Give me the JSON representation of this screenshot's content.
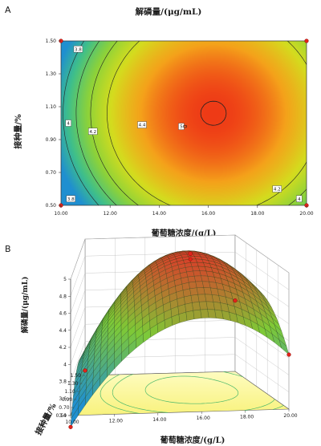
{
  "chart_data": [
    {
      "panel": "A",
      "type": "heatmap",
      "subtype": "contour",
      "title": "解磷量/(μg/mL)",
      "xlabel": "葡萄糖浓度/(g/L)",
      "ylabel": "接种量/%",
      "xlim": [
        10,
        20
      ],
      "ylim": [
        0.5,
        1.5
      ],
      "xticks": [
        "10.00",
        "12.00",
        "14.00",
        "16.00",
        "18.00",
        "20.00"
      ],
      "yticks": [
        "0.50",
        "0.70",
        "0.90",
        "1.10",
        "1.30",
        "1.50"
      ],
      "contour_levels": [
        3.8,
        4,
        4.2,
        4.4,
        5
      ],
      "contour_labels": [
        {
          "text": "3.8",
          "x": 10.7,
          "y": 1.45
        },
        {
          "text": "4",
          "x": 10.3,
          "y": 1.0
        },
        {
          "text": "4.2",
          "x": 11.3,
          "y": 0.95
        },
        {
          "text": "4.4",
          "x": 13.3,
          "y": 0.99
        },
        {
          "text": "5",
          "x": 14.9,
          "y": 0.98
        },
        {
          "text": "3.8",
          "x": 10.4,
          "y": 0.54
        },
        {
          "text": "4.2",
          "x": 18.8,
          "y": 0.6
        },
        {
          "text": "4",
          "x": 19.7,
          "y": 0.54
        }
      ],
      "design_points": [
        {
          "x": 10,
          "y": 1.5
        },
        {
          "x": 20,
          "y": 1.5
        },
        {
          "x": 10,
          "y": 0.5
        },
        {
          "x": 20,
          "y": 0.5
        }
      ],
      "color_scale": [
        "#1f8fd0",
        "#3fbf8a",
        "#8cd23a",
        "#d4dc1e",
        "#f4a21a",
        "#ee3a16"
      ]
    },
    {
      "panel": "B",
      "type": "area",
      "subtype": "surface3d",
      "xlabel": "葡萄糖浓度/(g/L)",
      "ylabel": "接种量/%",
      "zlabel": "解磷量/(μg/mL)",
      "xlim": [
        10,
        20
      ],
      "ylim": [
        0.5,
        1.5
      ],
      "zlim": [
        3.4,
        5
      ],
      "xticks": [
        "10.00",
        "12.00",
        "14.00",
        "16.00",
        "18.00",
        "20.00"
      ],
      "yticks": [
        "0.50",
        "0.70",
        "0.90",
        "1.10",
        "1.30",
        "1.50"
      ],
      "zticks": [
        "3.4",
        "3.6",
        "3.8",
        "4",
        "4.2",
        "4.4",
        "4.6",
        "4.8",
        "5"
      ],
      "surface_peak": {
        "x": 16.2,
        "y": 1.06,
        "z": 4.99
      },
      "edge_values": [
        {
          "x": 10,
          "y": 0.5,
          "z": 3.6
        },
        {
          "x": 20,
          "y": 0.5,
          "z": 3.9
        },
        {
          "x": 20,
          "y": 1.5,
          "z": 3.7
        }
      ],
      "colors": {
        "low": "#1f8fd0",
        "mid": "#7fc936",
        "high": "#d8402a",
        "floor": "#fbfc9a"
      }
    }
  ]
}
